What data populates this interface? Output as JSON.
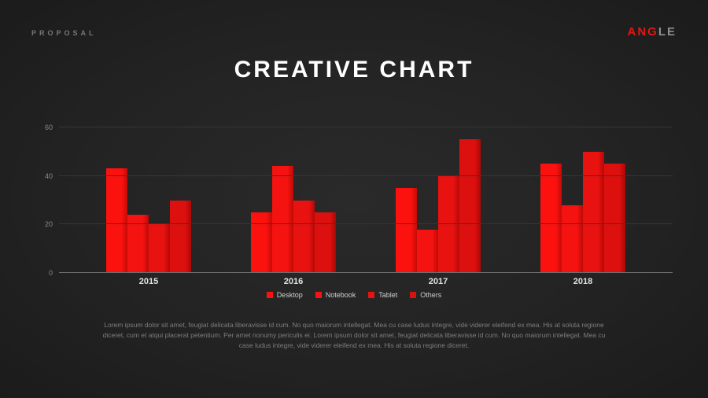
{
  "header": {
    "proposal_label": "PROPOSAL",
    "logo": {
      "red_part": "ANG",
      "gray_part": "LE"
    }
  },
  "title": "CREATIVE CHART",
  "chart_data": {
    "type": "bar",
    "categories": [
      "2015",
      "2016",
      "2017",
      "2018"
    ],
    "series": [
      {
        "name": "Desktop",
        "color": "#fb120e",
        "edge_color": "#c40b08",
        "values": [
          43,
          25,
          35,
          45
        ]
      },
      {
        "name": "Notebook",
        "color": "#f41310",
        "edge_color": "#bd0a07",
        "values": [
          24,
          44,
          18,
          28
        ]
      },
      {
        "name": "Tablet",
        "color": "#e81210",
        "edge_color": "#b40906",
        "values": [
          20,
          30,
          40,
          50
        ]
      },
      {
        "name": "Others",
        "color": "#dc100e",
        "edge_color": "#ab0805",
        "values": [
          30,
          25,
          55,
          45
        ]
      }
    ],
    "ylim": [
      0,
      60
    ],
    "yticks": [
      0,
      20,
      40,
      60
    ],
    "grid": true,
    "legend_position": "bottom",
    "title": "CREATIVE CHART",
    "xlabel": "",
    "ylabel": ""
  },
  "footer": {
    "paragraph": "Lorem ipsum dolor sit amet, feugiat delicata liberavisse id cum. No quo maiorum intellegat. Mea cu case ludus integre, vide viderer eleifend ex mea. His at soluta regione diceret, cum et atqui placerat petentium. Per amet nonumy periculis ei. Lorem ipsum dolor sit amet, feugiat delicata liberavisse id cum. No quo maiorum intellegat. Mea cu case ludus integre, vide viderer eleifend ex mea. His at soluta regione diceret."
  }
}
